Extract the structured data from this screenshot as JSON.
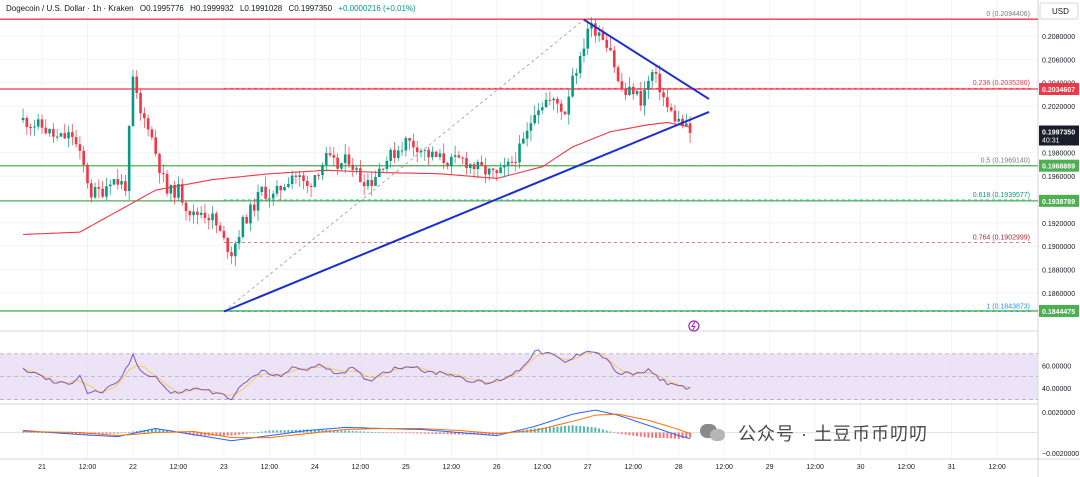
{
  "header": {
    "symbol": "Dogecoin / U.S. Dollar · 1h · Kraken",
    "open": "O0.1995776",
    "high": "H0.1999932",
    "low": "L0.1991028",
    "close": "C0.1997350",
    "change": "+0.0000216 (+0.01%)"
  },
  "currency": "USD",
  "watermark": "公众号 · 土豆币币叨叨",
  "colors": {
    "up": "#089981",
    "down": "#f23645",
    "trendline": "#1c2ecf",
    "ma": "#f23645",
    "support": "#4caf50",
    "resistance": "#f23645",
    "rsi": "#7e57c2",
    "rsi_band": "#e8dcf5"
  },
  "chart_data": {
    "type": "candlestick",
    "timeframe": "1h",
    "y_range": [
      0.1835,
      0.2104
    ],
    "y_ticks": [
      "0.2080000",
      "0.2060000",
      "0.2040000",
      "0.2020000",
      "0.1980000",
      "0.1960000",
      "0.1920000",
      "0.1900000",
      "0.1880000",
      "0.1860000"
    ],
    "x_labels": [
      "21",
      "12:00",
      "22",
      "12:00",
      "23",
      "12:00",
      "24",
      "12:00",
      "25",
      "12:00",
      "26",
      "12:00",
      "27",
      "12:00",
      "28",
      "12:00",
      "29",
      "12:00",
      "30",
      "12:00",
      "31",
      "12:00"
    ],
    "x_label_hours": [
      0,
      12,
      24,
      36,
      48,
      60,
      72,
      84,
      96,
      108,
      120,
      132,
      144,
      156,
      168,
      180,
      192,
      204,
      216,
      228,
      240,
      252
    ],
    "first_bar_hour": -5,
    "close_path": [
      [
        -5,
        0.2008
      ],
      [
        0,
        0.2002
      ],
      [
        4,
        0.1992
      ],
      [
        8,
        0.1995
      ],
      [
        11,
        0.1968
      ],
      [
        13,
        0.1945
      ],
      [
        16,
        0.1948
      ],
      [
        18,
        0.1958
      ],
      [
        22,
        0.1952
      ],
      [
        24,
        0.2042
      ],
      [
        26,
        0.2012
      ],
      [
        28,
        0.2005
      ],
      [
        31,
        0.1968
      ],
      [
        33,
        0.1946
      ],
      [
        36,
        0.1948
      ],
      [
        38,
        0.1935
      ],
      [
        40,
        0.1926
      ],
      [
        42,
        0.193
      ],
      [
        45,
        0.1924
      ],
      [
        48,
        0.1904
      ],
      [
        50,
        0.1895
      ],
      [
        53,
        0.192
      ],
      [
        56,
        0.1935
      ],
      [
        58,
        0.1948
      ],
      [
        61,
        0.1942
      ],
      [
        63,
        0.195
      ],
      [
        66,
        0.1962
      ],
      [
        68,
        0.1958
      ],
      [
        70,
        0.195
      ],
      [
        72,
        0.1962
      ],
      [
        75,
        0.1975
      ],
      [
        78,
        0.1968
      ],
      [
        81,
        0.1975
      ],
      [
        84,
        0.1958
      ],
      [
        87,
        0.1956
      ],
      [
        90,
        0.1972
      ],
      [
        93,
        0.198
      ],
      [
        96,
        0.199
      ],
      [
        99,
        0.1986
      ],
      [
        102,
        0.1978
      ],
      [
        105,
        0.1975
      ],
      [
        108,
        0.1972
      ],
      [
        111,
        0.1974
      ],
      [
        114,
        0.1968
      ],
      [
        117,
        0.1964
      ],
      [
        120,
        0.196
      ],
      [
        123,
        0.1968
      ],
      [
        126,
        0.1982
      ],
      [
        128,
        0.1996
      ],
      [
        130,
        0.2018
      ],
      [
        133,
        0.2025
      ],
      [
        136,
        0.2022
      ],
      [
        138,
        0.2015
      ],
      [
        140,
        0.2048
      ],
      [
        142,
        0.2058
      ],
      [
        144,
        0.2088
      ],
      [
        147,
        0.2085
      ],
      [
        150,
        0.207
      ],
      [
        152,
        0.204
      ],
      [
        154,
        0.203
      ],
      [
        156,
        0.2034
      ],
      [
        158,
        0.2025
      ],
      [
        161,
        0.2048
      ],
      [
        163,
        0.2036
      ],
      [
        165,
        0.2018
      ],
      [
        167,
        0.201
      ],
      [
        169,
        0.2004
      ],
      [
        171,
        0.1997
      ]
    ],
    "sma_path": [
      [
        -5,
        0.191
      ],
      [
        10,
        0.1912
      ],
      [
        20,
        0.193
      ],
      [
        30,
        0.1948
      ],
      [
        45,
        0.1957
      ],
      [
        60,
        0.1962
      ],
      [
        75,
        0.1965
      ],
      [
        90,
        0.1963
      ],
      [
        105,
        0.1962
      ],
      [
        120,
        0.1958
      ],
      [
        132,
        0.1968
      ],
      [
        140,
        0.1985
      ],
      [
        150,
        0.1998
      ],
      [
        160,
        0.2004
      ],
      [
        165,
        0.2006
      ],
      [
        171,
        0.2002
      ]
    ],
    "fibonacci": [
      {
        "ratio": "0",
        "value": "0.2094406",
        "label": "0 (0.2094406)",
        "color": "#787b86"
      },
      {
        "ratio": "0.236",
        "value": "0.2035280",
        "label": "0.236 (0.2035280)",
        "color": "#f23645"
      },
      {
        "ratio": "0.5",
        "value": "0.1969140",
        "label": "0.5 (0.1969140)",
        "color": "#787b86"
      },
      {
        "ratio": "0.618",
        "value": "0.1939577",
        "label": "0.618 (0.1939577)",
        "color": "#089981"
      },
      {
        "ratio": "0.764",
        "value": "0.1902999",
        "label": "0.764 (0.1902999)",
        "color": "#b22833"
      },
      {
        "ratio": "1",
        "value": "0.1843873",
        "label": "1 (0.1843873)",
        "color": "#2196f3"
      }
    ],
    "horizontal_levels": [
      {
        "value": "0.2094406",
        "color": "#f23645",
        "badge": false
      },
      {
        "value": "0.2034607",
        "color": "#f23645",
        "badge": true
      },
      {
        "value": "0.1968889",
        "color": "#4caf50",
        "badge": true
      },
      {
        "value": "0.1938789",
        "color": "#4caf50",
        "badge": true
      },
      {
        "value": "0.1844475",
        "color": "#4caf50",
        "badge": true
      }
    ],
    "price_label": {
      "value": "0.1997350",
      "countdown": "40:31"
    },
    "trendlines": [
      {
        "name": "support",
        "from": [
          48,
          0.1844
        ],
        "to": [
          176,
          0.2015
        ]
      },
      {
        "name": "resistance",
        "from": [
          143,
          0.2094
        ],
        "to": [
          176,
          0.2026
        ]
      }
    ],
    "fib_diagonal": {
      "from": [
        48,
        0.1844
      ],
      "to": [
        143,
        0.2094
      ]
    },
    "rsi": {
      "y_range": [
        28,
        82
      ],
      "y_ticks": [
        "60.00000",
        "40.00000"
      ],
      "band": [
        30,
        70
      ],
      "values": [
        [
          -5,
          57
        ],
        [
          0,
          50
        ],
        [
          4,
          44
        ],
        [
          8,
          45
        ],
        [
          10,
          52
        ],
        [
          12,
          36
        ],
        [
          16,
          37
        ],
        [
          20,
          44
        ],
        [
          24,
          68
        ],
        [
          26,
          55
        ],
        [
          30,
          50
        ],
        [
          34,
          35
        ],
        [
          38,
          38
        ],
        [
          42,
          40
        ],
        [
          46,
          35
        ],
        [
          50,
          32
        ],
        [
          54,
          46
        ],
        [
          58,
          55
        ],
        [
          62,
          50
        ],
        [
          66,
          57
        ],
        [
          70,
          57
        ],
        [
          74,
          60
        ],
        [
          78,
          53
        ],
        [
          82,
          57
        ],
        [
          86,
          46
        ],
        [
          90,
          54
        ],
        [
          94,
          58
        ],
        [
          98,
          60
        ],
        [
          102,
          53
        ],
        [
          106,
          54
        ],
        [
          110,
          50
        ],
        [
          114,
          46
        ],
        [
          118,
          44
        ],
        [
          122,
          49
        ],
        [
          126,
          56
        ],
        [
          130,
          72
        ],
        [
          134,
          70
        ],
        [
          138,
          62
        ],
        [
          140,
          66
        ],
        [
          144,
          74
        ],
        [
          148,
          68
        ],
        [
          152,
          53
        ],
        [
          156,
          52
        ],
        [
          160,
          55
        ],
        [
          164,
          46
        ],
        [
          168,
          42
        ],
        [
          171,
          40
        ]
      ]
    },
    "macd": {
      "y_range": [
        -0.0022,
        0.0026
      ],
      "y_ticks": [
        "0.0020000",
        "−0.0020000"
      ],
      "macd": [
        [
          -5,
          0.0002
        ],
        [
          10,
          -0.0002
        ],
        [
          20,
          -0.0004
        ],
        [
          30,
          0.0004
        ],
        [
          40,
          -0.0002
        ],
        [
          50,
          -0.0008
        ],
        [
          60,
          -0.0003
        ],
        [
          70,
          0.0002
        ],
        [
          80,
          0.0005
        ],
        [
          90,
          0.0004
        ],
        [
          100,
          0.0003
        ],
        [
          110,
          0.0
        ],
        [
          120,
          -0.0003
        ],
        [
          130,
          0.0006
        ],
        [
          140,
          0.0018
        ],
        [
          146,
          0.0022
        ],
        [
          152,
          0.0017
        ],
        [
          160,
          0.0007
        ],
        [
          168,
          -0.0003
        ],
        [
          171,
          -0.0006
        ]
      ],
      "signal": [
        [
          -5,
          0.0001
        ],
        [
          10,
          0.0
        ],
        [
          20,
          -0.0003
        ],
        [
          30,
          0.0
        ],
        [
          40,
          0.0001
        ],
        [
          50,
          -0.0005
        ],
        [
          60,
          -0.0005
        ],
        [
          70,
          -0.0001
        ],
        [
          80,
          0.0003
        ],
        [
          90,
          0.0004
        ],
        [
          100,
          0.0004
        ],
        [
          110,
          0.0002
        ],
        [
          120,
          -0.0001
        ],
        [
          130,
          0.0002
        ],
        [
          140,
          0.0011
        ],
        [
          146,
          0.0017
        ],
        [
          152,
          0.0018
        ],
        [
          160,
          0.0012
        ],
        [
          168,
          0.0003
        ],
        [
          171,
          -0.0001
        ]
      ]
    }
  }
}
